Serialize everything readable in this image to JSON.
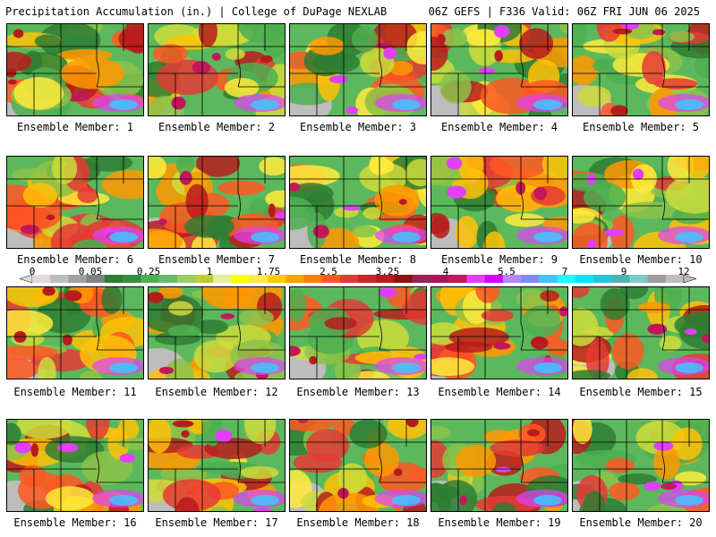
{
  "header": {
    "title": "Precipitation Accumulation (in.) | College of DuPage NEXLAB",
    "run_info": "06Z GEFS | F336 Valid: 06Z FRI JUN 06 2025"
  },
  "colorbar": {
    "tick_labels": [
      "0",
      "0.05",
      "0.25",
      "1",
      "1.75",
      "2.5",
      "3.25",
      "4",
      "5.5",
      "7",
      "9",
      "12"
    ],
    "colors": [
      "#dcdcdc",
      "#bebebe",
      "#a0a0a0",
      "#828282",
      "#2e7d32",
      "#388e3c",
      "#4caf50",
      "#66bb6a",
      "#9ccc65",
      "#c0ca33",
      "#e6ee9c",
      "#ffff00",
      "#ffeb3b",
      "#ffcc00",
      "#ffa000",
      "#ff8000",
      "#ff5722",
      "#e53935",
      "#c62828",
      "#b71c1c",
      "#8e1010",
      "#9c1f5a",
      "#ad1457",
      "#c2185b",
      "#e040fb",
      "#d500f9",
      "#b388ff",
      "#7c8cff",
      "#40c4ff",
      "#18ffff",
      "#00e5ff",
      "#26c6da",
      "#4db6ac",
      "#80cbc4",
      "#9e9e9e",
      "#bdbdbd"
    ]
  },
  "members": [
    {
      "label": "Ensemble Member: 1"
    },
    {
      "label": "Ensemble Member: 2"
    },
    {
      "label": "Ensemble Member: 3"
    },
    {
      "label": "Ensemble Member: 4"
    },
    {
      "label": "Ensemble Member: 5"
    },
    {
      "label": "Ensemble Member: 6"
    },
    {
      "label": "Ensemble Member: 7"
    },
    {
      "label": "Ensemble Member: 8"
    },
    {
      "label": "Ensemble Member: 9"
    },
    {
      "label": "Ensemble Member: 10"
    },
    {
      "label": "Ensemble Member: 11"
    },
    {
      "label": "Ensemble Member: 12"
    },
    {
      "label": "Ensemble Member: 13"
    },
    {
      "label": "Ensemble Member: 14"
    },
    {
      "label": "Ensemble Member: 15"
    },
    {
      "label": "Ensemble Member: 16"
    },
    {
      "label": "Ensemble Member: 17"
    },
    {
      "label": "Ensemble Member: 18"
    },
    {
      "label": "Ensemble Member: 19"
    },
    {
      "label": "Ensemble Member: 20"
    }
  ]
}
